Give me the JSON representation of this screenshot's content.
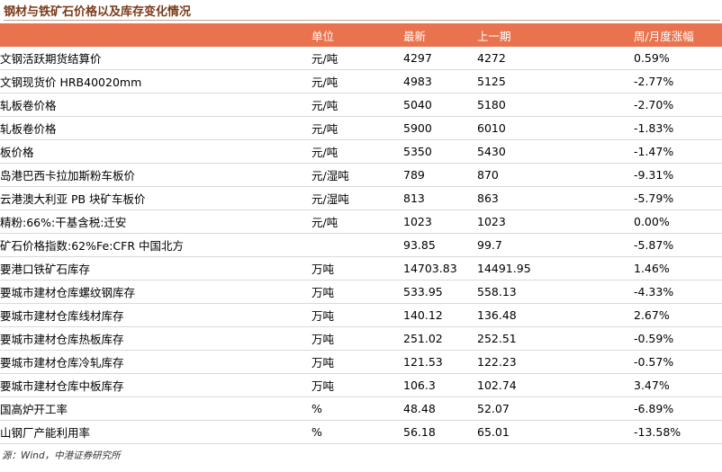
{
  "header": {
    "title": "钢材与铁矿石价格以及库存变化情况"
  },
  "table": {
    "columns": [
      "单位",
      "最新",
      "上一期",
      "周/月度涨幅"
    ],
    "rows": [
      [
        "文钢活跃期货结算价",
        "元/吨",
        "4297",
        "4272",
        "0.59%"
      ],
      [
        "文钢现货价 HRB40020mm",
        "元/吨",
        "4983",
        "5125",
        "-2.77%"
      ],
      [
        "轧板卷价格",
        "元/吨",
        "5040",
        "5180",
        "-2.70%"
      ],
      [
        "轧板卷价格",
        "元/吨",
        "5900",
        "6010",
        "-1.83%"
      ],
      [
        "板价格",
        "元/吨",
        "5350",
        "5430",
        "-1.47%"
      ],
      [
        "岛港巴西卡拉加斯粉车板价",
        "元/湿吨",
        "789",
        "870",
        "-9.31%"
      ],
      [
        "云港澳大利亚 PB 块矿车板价",
        "元/湿吨",
        "813",
        "863",
        "-5.79%"
      ],
      [
        "精粉:66%:干基含税:迁安",
        "元/吨",
        "1023",
        "1023",
        "0.00%"
      ],
      [
        "矿石价格指数:62%Fe:CFR 中国北方",
        null,
        "93.85",
        "99.7",
        "-5.87%"
      ],
      [
        "要港口铁矿石库存",
        "万吨",
        "14703.83",
        "14491.95",
        "1.46%"
      ],
      [
        "要城市建材仓库螺纹钢库存",
        "万吨",
        "533.95",
        "558.13",
        "-4.33%"
      ],
      [
        "要城市建材仓库线材库存",
        "万吨",
        "140.12",
        "136.48",
        "2.67%"
      ],
      [
        "要城市建材仓库热板库存",
        "万吨",
        "251.02",
        "252.51",
        "-0.59%"
      ],
      [
        "要城市建材仓库冷轧库存",
        "万吨",
        "121.53",
        "122.23",
        "-0.57%"
      ],
      [
        "要城市建材仓库中板库存",
        "万吨",
        "106.3",
        "102.74",
        "3.47%"
      ],
      [
        "国高炉开工率",
        "%",
        "48.48",
        "52.07",
        "-6.89%"
      ],
      [
        "山钢厂产能利用率",
        "%",
        "56.18",
        "65.01",
        "-13.58%"
      ]
    ]
  },
  "footer": {
    "source": "源：Wind，中港证券研究所"
  }
}
